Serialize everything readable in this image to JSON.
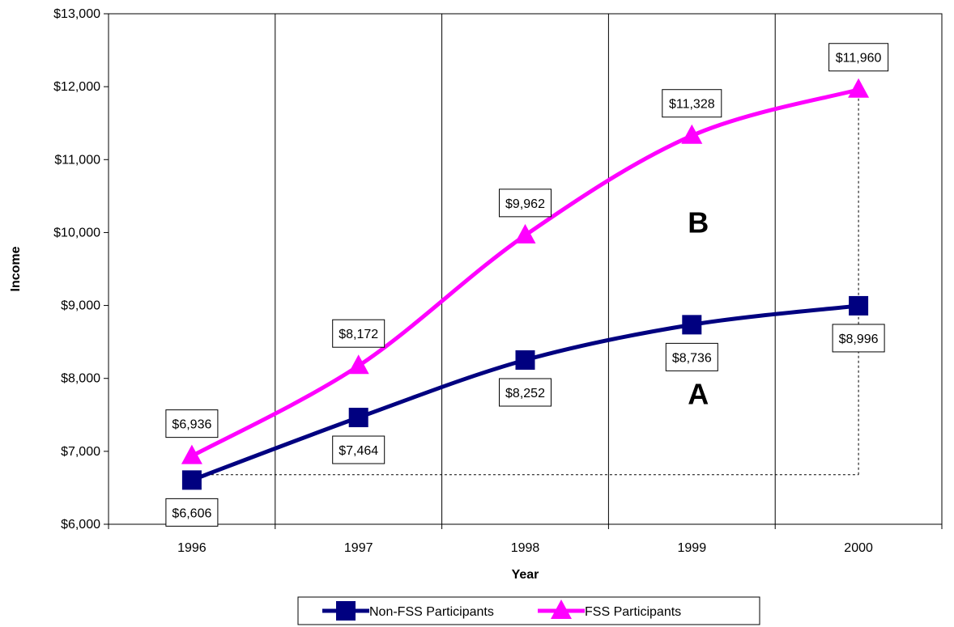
{
  "chart_data": {
    "type": "line",
    "categories": [
      "1996",
      "1997",
      "1998",
      "1999",
      "2000"
    ],
    "series": [
      {
        "name": "Non-FSS Participants",
        "values": [
          6606,
          7464,
          8252,
          8736,
          8996
        ],
        "labels": [
          "$6,606",
          "$7,464",
          "$8,252",
          "$8,736",
          "$8,996"
        ],
        "color": "#000080",
        "marker": "square"
      },
      {
        "name": "FSS Participants",
        "values": [
          6936,
          8172,
          9962,
          11328,
          11960
        ],
        "labels": [
          "$6,936",
          "$8,172",
          "$9,962",
          "$11,328",
          "$11,960"
        ],
        "color": "#FF00FF",
        "marker": "triangle"
      }
    ],
    "xlabel": "Year",
    "ylabel": "Income",
    "ylim": [
      6000,
      13000
    ],
    "yticks": [
      6000,
      7000,
      8000,
      9000,
      10000,
      11000,
      12000,
      13000
    ],
    "ytick_labels": [
      "$6,000",
      "$7,000",
      "$8,000",
      "$9,000",
      "$10,000",
      "$11,000",
      "$12,000",
      "$13,000"
    ],
    "grid": "vertical",
    "legend": "bottom",
    "annotations": [
      {
        "text": "A",
        "x": "1999",
        "y": 7650
      },
      {
        "text": "B",
        "x": "1999",
        "y": 10000
      }
    ],
    "reference_lines": {
      "horizontal_y": 6680,
      "horizontal_from": "1996",
      "horizontal_to": "2000",
      "vertical_x": "2000",
      "vertical_from": 6680,
      "vertical_to": 11960
    }
  }
}
